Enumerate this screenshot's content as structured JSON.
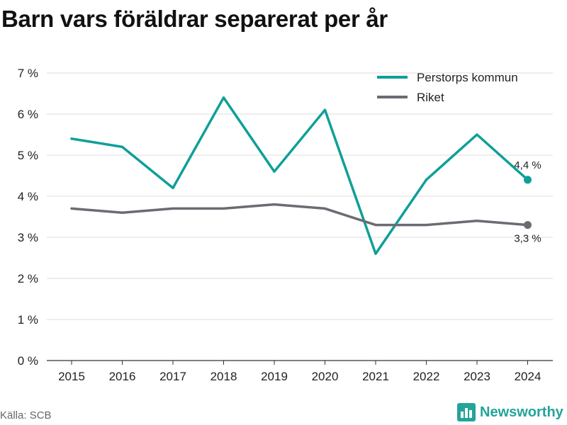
{
  "title": "Barn vars föräldrar separerat per år",
  "source": "Källa: SCB",
  "brand": {
    "name": "Newsworthy",
    "icon": "bar-chart-logo-icon",
    "color": "#23a49a"
  },
  "chart_data": {
    "type": "line",
    "x": [
      "2015",
      "2016",
      "2017",
      "2018",
      "2019",
      "2020",
      "2021",
      "2022",
      "2023",
      "2024"
    ],
    "ylim": [
      0,
      7
    ],
    "yticks": [
      0,
      1,
      2,
      3,
      4,
      5,
      6,
      7
    ],
    "ytick_labels": [
      "0 %",
      "1 %",
      "2 %",
      "3 %",
      "4 %",
      "5 %",
      "6 %",
      "7 %"
    ],
    "grid": true,
    "legend_position": "top-right",
    "series": [
      {
        "name": "Perstorps kommun",
        "color": "#0f9f98",
        "values": [
          5.4,
          5.2,
          4.2,
          6.4,
          4.6,
          6.1,
          2.6,
          4.4,
          5.5,
          4.4
        ],
        "end_label": "4,4 %"
      },
      {
        "name": "Riket",
        "color": "#6b6b73",
        "values": [
          3.7,
          3.6,
          3.7,
          3.7,
          3.8,
          3.7,
          3.3,
          3.3,
          3.4,
          3.3
        ],
        "end_label": "3,3 %"
      }
    ]
  }
}
